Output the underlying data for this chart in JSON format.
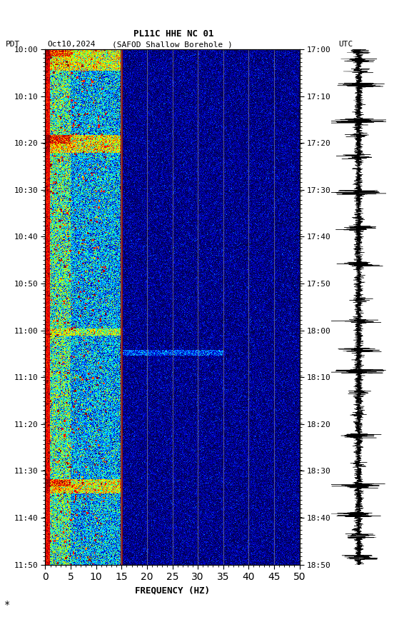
{
  "title_line1": "PL11C HHE NC 01",
  "title_line2_left": "PDT   Oct10,2024      (SAFOD Shallow Borehole )                    UTC",
  "xlabel": "FREQUENCY (HZ)",
  "freq_min": 0,
  "freq_max": 50,
  "freq_ticks": [
    0,
    5,
    10,
    15,
    20,
    25,
    30,
    35,
    40,
    45,
    50
  ],
  "time_left_labels": [
    "10:00",
    "10:10",
    "10:20",
    "10:30",
    "10:40",
    "10:50",
    "11:00",
    "11:10",
    "11:20",
    "11:30",
    "11:40",
    "11:50"
  ],
  "time_right_labels": [
    "17:00",
    "17:10",
    "17:20",
    "17:30",
    "17:40",
    "17:50",
    "18:00",
    "18:10",
    "18:20",
    "18:30",
    "18:40",
    "18:50"
  ],
  "n_time_steps": 720,
  "n_freq_steps": 500,
  "vertical_lines_freq": [
    15,
    20,
    25,
    30,
    35,
    40,
    45
  ],
  "background_color": "white"
}
